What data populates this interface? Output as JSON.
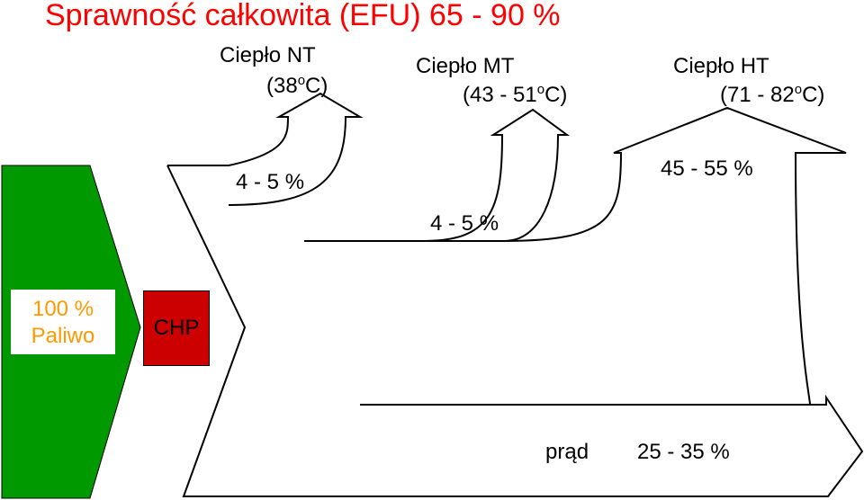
{
  "title": "Sprawność całkowita (EFU)  65 - 90 %",
  "outputs": {
    "nt": {
      "name": "Ciepło NT",
      "temp_open": "(38",
      "temp_sup": "o",
      "temp_close": "C)",
      "percent": "4 - 5 %"
    },
    "mt": {
      "name": "Ciepło MT",
      "temp_open": "(43 - 51",
      "temp_sup": "o",
      "temp_close": "C)",
      "percent": "4 - 5 %"
    },
    "ht": {
      "name": "Ciepło HT",
      "temp_open": "(71 - 82",
      "temp_sup": "o",
      "temp_close": "C)",
      "percent": "45 - 55 %"
    },
    "power": {
      "name": "prąd",
      "percent": "25 - 35 %"
    }
  },
  "input": {
    "percent": "100 %",
    "name": "Paliwo"
  },
  "unit": {
    "name": "CHP"
  },
  "colors": {
    "title": "#ff0000",
    "fuel_arrow": "#009900",
    "fuel_text": "#ff9900",
    "chp_box": "#cc0000",
    "outline": "#000000"
  }
}
